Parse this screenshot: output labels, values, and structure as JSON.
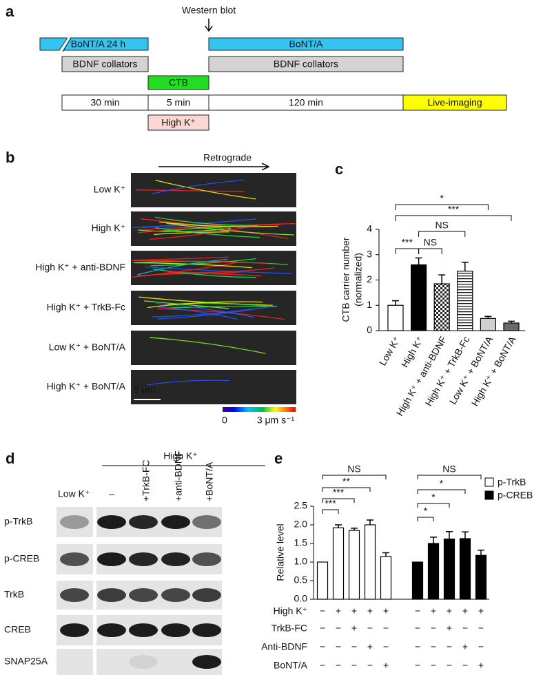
{
  "panel_labels": [
    "a",
    "b",
    "c",
    "d",
    "e"
  ],
  "timeline": {
    "annotation": "Western blot",
    "boxes": [
      "BoNT/A 24 h",
      "BoNT/A",
      "BDNF collators",
      "BDNF collators",
      "CTB",
      "30 min",
      "5 min",
      "120 min",
      "Live-imaging",
      "High K⁺"
    ]
  },
  "imaging": {
    "direction": "Retrograde",
    "conditions": [
      "Low K⁺",
      "High K⁺",
      "High K⁺ + anti-BDNF",
      "High K⁺ + TrkB-Fc",
      "Low K⁺ + BoNT/A",
      "High K⁺ + BoNT/A"
    ],
    "scale_bar": "5 μm",
    "colorbar": [
      "0",
      "3 μm s⁻¹"
    ]
  },
  "blot": {
    "group": "High K⁺",
    "lanes": [
      "Low K⁺",
      "–",
      "+TrkB-FC",
      "+anti-BDNF",
      "+BoNT/A"
    ],
    "proteins": [
      "p-TrkB",
      "p-CREB",
      "TrkB",
      "CREB",
      "SNAP25A"
    ]
  },
  "chart_data": [
    {
      "type": "bar",
      "y_label": [
        "CTB  carrier number",
        "(normalized)"
      ],
      "categories": [
        "Low K⁺",
        "High K⁺",
        "High K⁺ + anti-BDNF",
        "High K⁺ + TrkB-Fc",
        "Low K⁺ + BoNT/A",
        "High K⁺ + BoNT/A"
      ],
      "values": [
        1,
        2.6,
        1.85,
        2.35,
        0.48,
        0.3
      ],
      "errors": [
        0.18,
        0.27,
        0.35,
        0.35,
        0.08,
        0.07
      ],
      "colors": [
        "#ffffff",
        "#000000",
        "#ffffff",
        "#ffffff",
        "#d0d0d0",
        "#6a6a6a"
      ],
      "ylim": [
        0,
        4
      ],
      "yticks": [
        0,
        1,
        2,
        3,
        4
      ],
      "annotations": [
        "*",
        "***",
        "NS",
        "NS",
        "***"
      ]
    },
    {
      "type": "grouped_bar",
      "y_label": "Relative level",
      "categories": [
        null,
        null,
        null,
        null,
        null
      ],
      "series": [
        {
          "name": "p-TrkB",
          "color": "#ffffff",
          "values": [
            1,
            1.92,
            1.85,
            2.0,
            1.15
          ],
          "errors": [
            null,
            0.08,
            0.06,
            0.13,
            0.1
          ]
        },
        {
          "name": "p-CREB",
          "color": "#000000",
          "values": [
            1,
            1.5,
            1.62,
            1.63,
            1.18
          ],
          "errors": [
            null,
            0.17,
            0.2,
            0.18,
            0.14
          ]
        }
      ],
      "ylim": [
        0,
        2.5
      ],
      "yticks": [
        {
          "value": 0,
          "label": "0.0"
        },
        {
          "value": 0.5,
          "label": "0.5"
        },
        {
          "value": 1,
          "label": "1.0"
        },
        {
          "value": 1.5,
          "label": "1.5"
        },
        {
          "value": 2,
          "label": "2.0"
        },
        {
          "value": 2.5,
          "label": "2.5"
        }
      ],
      "annotations": [
        [
          "NS",
          "**",
          "***",
          "***"
        ],
        [
          "NS",
          "*",
          "*",
          "*"
        ]
      ],
      "conditions": [
        {
          "label": "High K⁺",
          "marks": [
            "−",
            "+",
            "+",
            "+",
            "+"
          ]
        },
        {
          "label": "TrkB-FC",
          "marks": [
            "−",
            "−",
            "+",
            "−",
            "−"
          ]
        },
        {
          "label": "Anti-BDNF",
          "marks": [
            "−",
            "−",
            "−",
            "+",
            "−"
          ]
        },
        {
          "label": "BoNT/A",
          "marks": [
            "−",
            "−",
            "−",
            "−",
            "+"
          ]
        }
      ]
    }
  ]
}
